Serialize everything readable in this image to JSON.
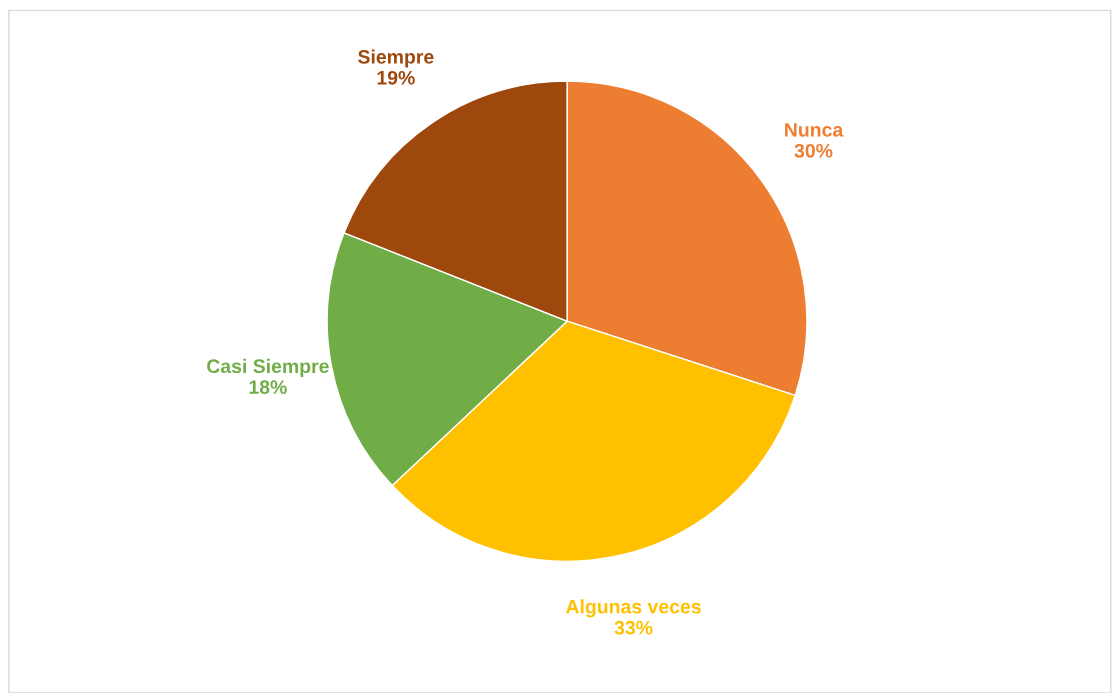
{
  "chart_data": {
    "type": "pie",
    "categories": [
      "Nunca",
      "Algunas veces",
      "Casi Siempre",
      "Siempre"
    ],
    "values": [
      30,
      33,
      18,
      19
    ],
    "value_labels": [
      "30%",
      "33%",
      "18%",
      "19%"
    ],
    "colors": [
      "#ed7d31",
      "#ffc000",
      "#70ad47",
      "#9e480e"
    ],
    "legend": false
  }
}
